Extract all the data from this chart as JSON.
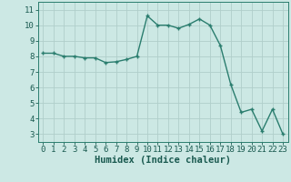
{
  "x": [
    0,
    1,
    2,
    3,
    4,
    5,
    6,
    7,
    8,
    9,
    10,
    11,
    12,
    13,
    14,
    15,
    16,
    17,
    18,
    19,
    20,
    21,
    22,
    23
  ],
  "y": [
    8.2,
    8.2,
    8.0,
    8.0,
    7.9,
    7.9,
    7.6,
    7.65,
    7.8,
    8.0,
    10.6,
    10.0,
    10.0,
    9.8,
    10.05,
    10.4,
    10.0,
    8.7,
    6.2,
    4.4,
    4.6,
    3.2,
    4.6,
    3.0
  ],
  "line_color": "#2a7d6e",
  "marker": "+",
  "marker_size": 3.5,
  "line_width": 1.0,
  "bg_color": "#cce8e4",
  "grid_color": "#b0ceca",
  "grid_color_minor": "#d4e8e5",
  "xlabel": "Humidex (Indice chaleur)",
  "xlabel_fontsize": 7.5,
  "tick_fontsize": 6.5,
  "ylim": [
    2.5,
    11.5
  ],
  "xlim": [
    -0.5,
    23.5
  ],
  "yticks": [
    3,
    4,
    5,
    6,
    7,
    8,
    9,
    10,
    11
  ],
  "xticks": [
    0,
    1,
    2,
    3,
    4,
    5,
    6,
    7,
    8,
    9,
    10,
    11,
    12,
    13,
    14,
    15,
    16,
    17,
    18,
    19,
    20,
    21,
    22,
    23
  ],
  "spine_color": "#2a7d6e",
  "label_color": "#1a5a50"
}
